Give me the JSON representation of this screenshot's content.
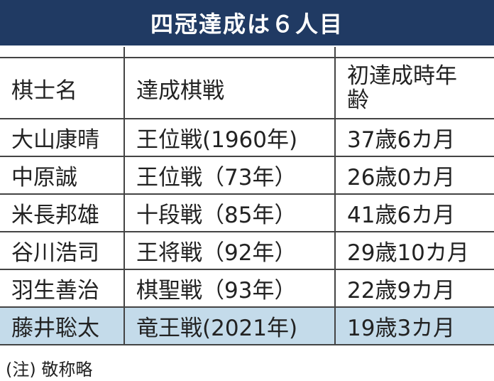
{
  "title": "四冠達成は６人目",
  "table": {
    "headers": [
      "棋士名",
      "達成棋戦",
      "初達成時年齢"
    ],
    "rows": [
      [
        "大山康晴",
        "王位戦(1960年)",
        "37歳6カ月"
      ],
      [
        "中原誠",
        "王位戦（73年）",
        "26歳0カ月"
      ],
      [
        "米長邦雄",
        "十段戦（85年）",
        "41歳6カ月"
      ],
      [
        "谷川浩司",
        "王将戦（92年）",
        "29歳10カ月"
      ],
      [
        "羽生善治",
        "棋聖戦（93年）",
        "22歳9カ月"
      ],
      [
        "藤井聡太",
        "竜王戦(2021年)",
        "19歳3カ月"
      ]
    ]
  },
  "note": "(注) 敬称略"
}
